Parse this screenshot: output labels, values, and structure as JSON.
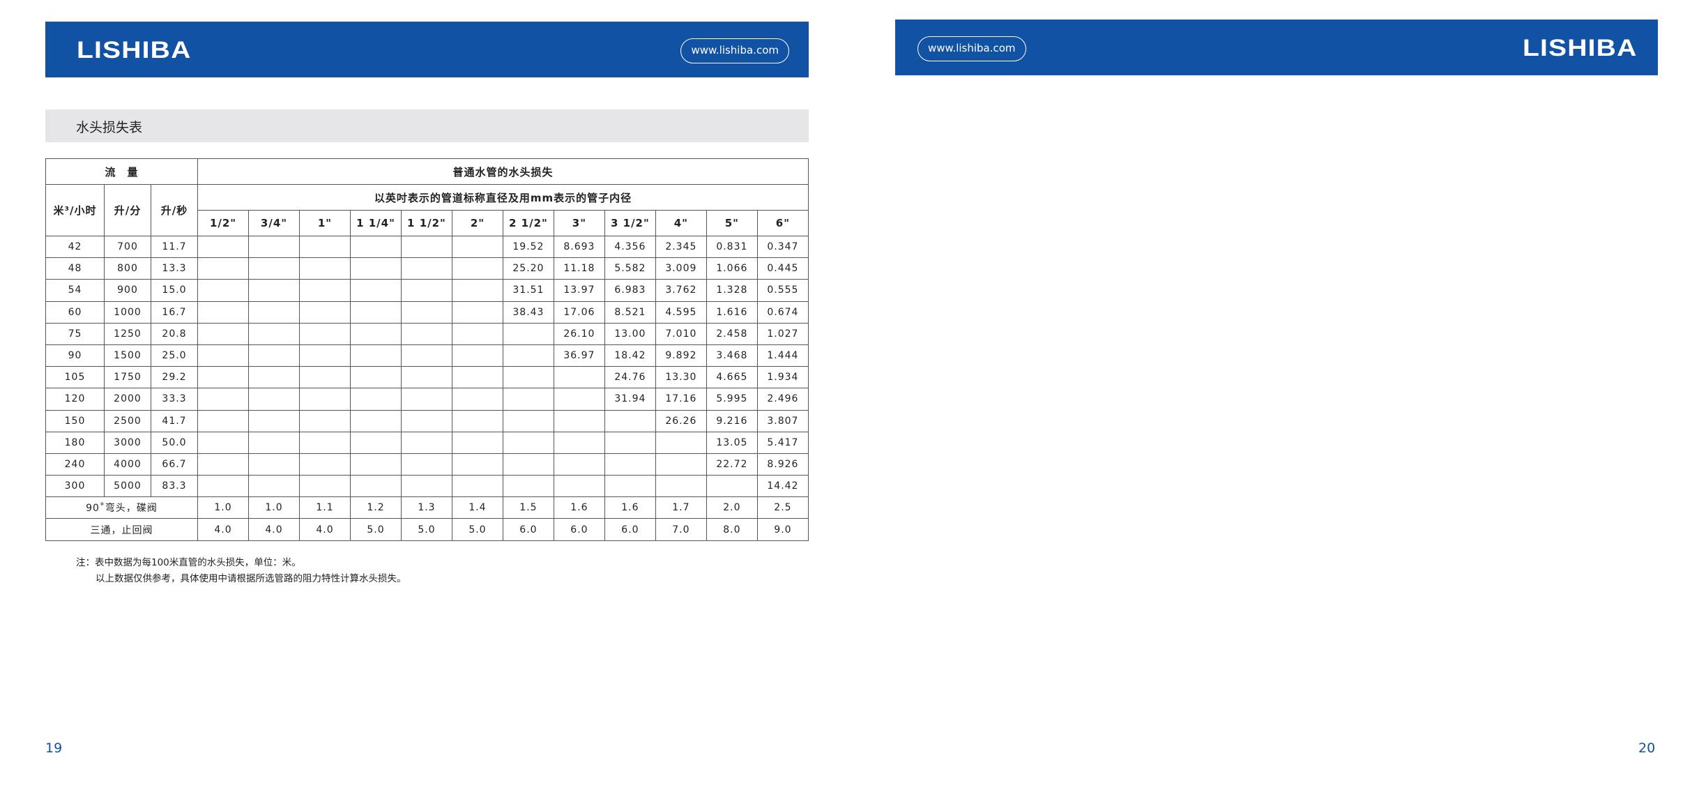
{
  "header": {
    "logo": "LISHIBA",
    "url": "www.lishiba.com",
    "color": "#1152a4"
  },
  "title": "水头损失表",
  "table": {
    "flow_header": "流　量",
    "loss_header": "普通水管的水头损失",
    "sub_header": "以英吋表示的管道标称直径及用mm表示的管子内径",
    "unit_m3h": "米³/小时",
    "unit_lmin": "升/分",
    "unit_ls": "升/秒",
    "sizes": [
      "1/2\"",
      "3/4\"",
      "1\"",
      "1 1/4\"",
      "1 1/2\"",
      "2\"",
      "2 1/2\"",
      "3\"",
      "3 1/2\"",
      "4\"",
      "5\"",
      "6\""
    ],
    "rows": [
      [
        "42",
        "700",
        "11.7",
        "",
        "",
        "",
        "",
        "",
        "",
        "19.52",
        "8.693",
        "4.356",
        "2.345",
        "0.831",
        "0.347"
      ],
      [
        "48",
        "800",
        "13.3",
        "",
        "",
        "",
        "",
        "",
        "",
        "25.20",
        "11.18",
        "5.582",
        "3.009",
        "1.066",
        "0.445"
      ],
      [
        "54",
        "900",
        "15.0",
        "",
        "",
        "",
        "",
        "",
        "",
        "31.51",
        "13.97",
        "6.983",
        "3.762",
        "1.328",
        "0.555"
      ],
      [
        "60",
        "1000",
        "16.7",
        "",
        "",
        "",
        "",
        "",
        "",
        "38.43",
        "17.06",
        "8.521",
        "4.595",
        "1.616",
        "0.674"
      ],
      [
        "75",
        "1250",
        "20.8",
        "",
        "",
        "",
        "",
        "",
        "",
        "",
        "26.10",
        "13.00",
        "7.010",
        "2.458",
        "1.027"
      ],
      [
        "90",
        "1500",
        "25.0",
        "",
        "",
        "",
        "",
        "",
        "",
        "",
        "36.97",
        "18.42",
        "9.892",
        "3.468",
        "1.444"
      ],
      [
        "105",
        "1750",
        "29.2",
        "",
        "",
        "",
        "",
        "",
        "",
        "",
        "",
        "24.76",
        "13.30",
        "4.665",
        "1.934"
      ],
      [
        "120",
        "2000",
        "33.3",
        "",
        "",
        "",
        "",
        "",
        "",
        "",
        "",
        "31.94",
        "17.16",
        "5.995",
        "2.496"
      ],
      [
        "150",
        "2500",
        "41.7",
        "",
        "",
        "",
        "",
        "",
        "",
        "",
        "",
        "",
        "26.26",
        "9.216",
        "3.807"
      ],
      [
        "180",
        "3000",
        "50.0",
        "",
        "",
        "",
        "",
        "",
        "",
        "",
        "",
        "",
        "",
        "13.05",
        "5.417"
      ],
      [
        "240",
        "4000",
        "66.7",
        "",
        "",
        "",
        "",
        "",
        "",
        "",
        "",
        "",
        "",
        "22.72",
        "8.926"
      ],
      [
        "300",
        "5000",
        "83.3",
        "",
        "",
        "",
        "",
        "",
        "",
        "",
        "",
        "",
        "",
        "",
        "14.42"
      ]
    ],
    "fittings": [
      {
        "label": "90˚弯头，碟阀",
        "values": [
          "1.0",
          "1.0",
          "1.1",
          "1.2",
          "1.3",
          "1.4",
          "1.5",
          "1.6",
          "1.6",
          "1.7",
          "2.0",
          "2.5"
        ]
      },
      {
        "label": "三通，止回阀",
        "values": [
          "4.0",
          "4.0",
          "4.0",
          "5.0",
          "5.0",
          "5.0",
          "6.0",
          "6.0",
          "6.0",
          "7.0",
          "8.0",
          "9.0"
        ]
      }
    ]
  },
  "notes": [
    "注：表中数据为每100米直管的水头损失，单位：米。",
    "以上数据仅供参考，具体使用中请根据所选管路的阻力特性计算水头损失。"
  ],
  "page_left": "19",
  "page_right": "20"
}
